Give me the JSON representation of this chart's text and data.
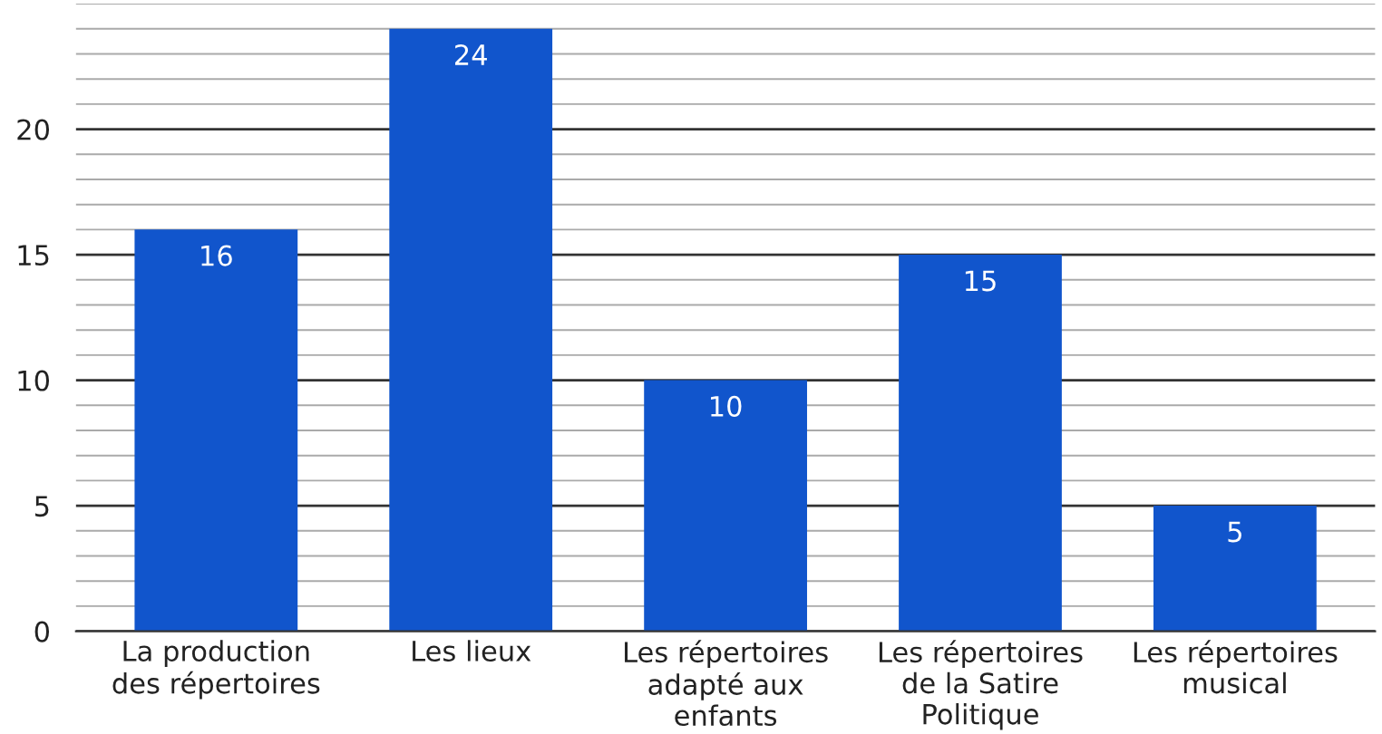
{
  "chart_data": {
    "type": "bar",
    "categories": [
      "La production\ndes répertoires",
      "Les lieux",
      "Les répertoires\nadapté aux\nenfants",
      "Les répertoires\nde la Satire\nPolitique",
      "Les répertoires\nmusical"
    ],
    "values": [
      16,
      24,
      10,
      15,
      5
    ],
    "color": "#1155cc",
    "ylim": [
      0,
      25
    ],
    "yticks": [
      0,
      5,
      10,
      15,
      20
    ],
    "grid": "y",
    "data_labels": true
  }
}
